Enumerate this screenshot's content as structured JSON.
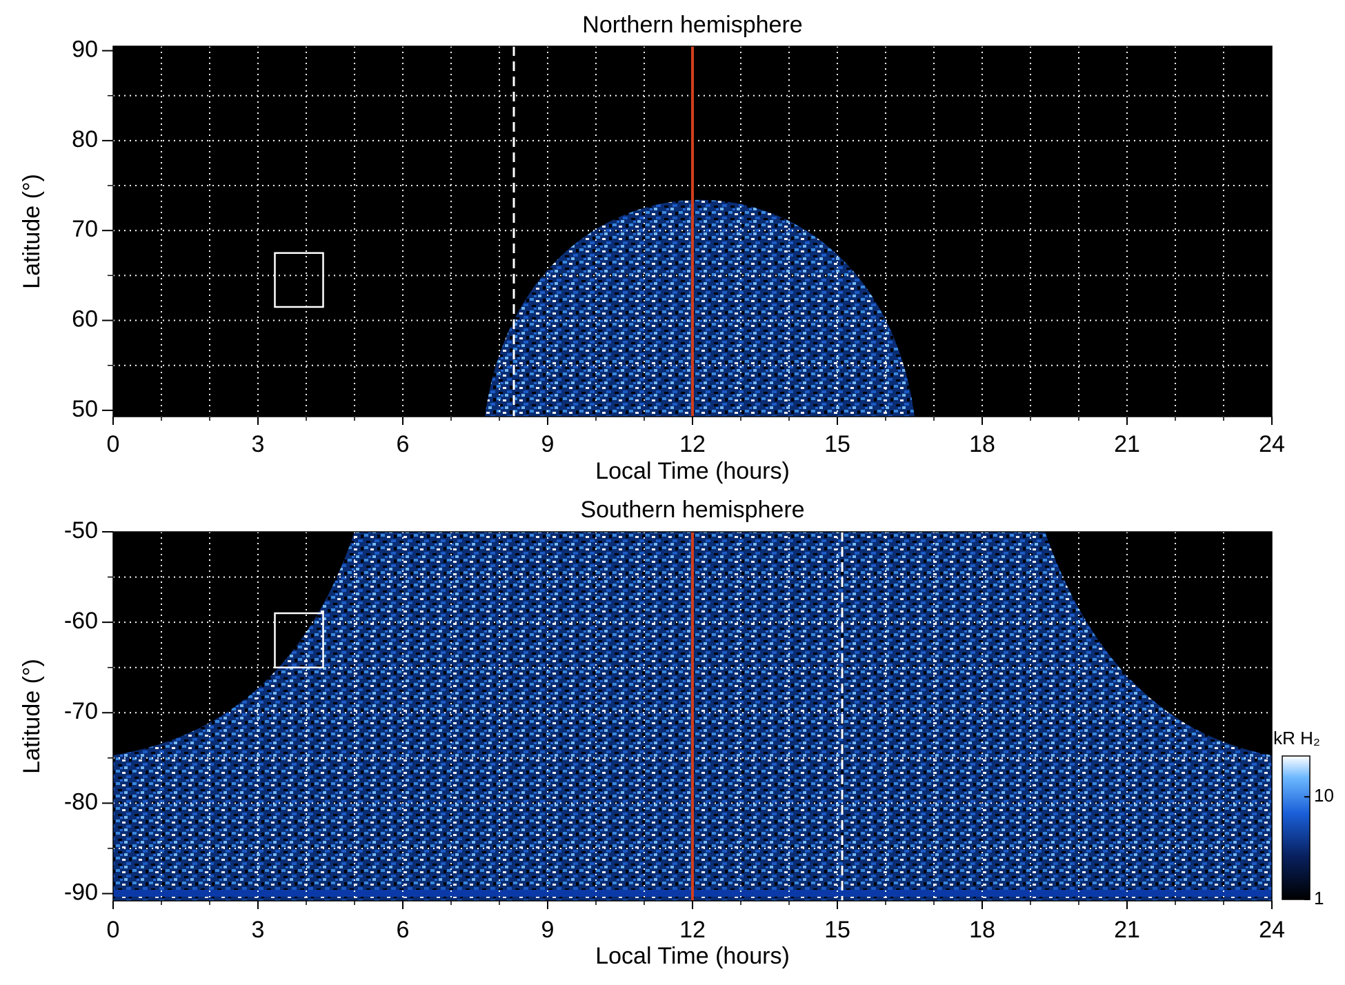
{
  "chart_data": [
    {
      "type": "heatmap",
      "title": "Northern hemisphere",
      "xlabel": "Local Time (hours)",
      "ylabel": "Latitude (°)",
      "xlim": [
        0,
        24
      ],
      "xticks": [
        0,
        3,
        6,
        9,
        12,
        15,
        18,
        21,
        24
      ],
      "xgridticks": [
        1,
        2,
        3,
        4,
        5,
        6,
        7,
        8,
        9,
        10,
        11,
        12,
        13,
        14,
        15,
        16,
        17,
        18,
        19,
        20,
        21,
        22,
        23
      ],
      "ylim": [
        49.3,
        90.5
      ],
      "yticks": [
        50,
        60,
        70,
        80,
        90
      ],
      "ygridticks": [
        55,
        60,
        65,
        70,
        75,
        80,
        85
      ],
      "vlines": [
        {
          "x": 12,
          "color": "#d23f1c",
          "style": "solid"
        },
        {
          "x": 8.3,
          "color": "#ffffff",
          "style": "dashed"
        }
      ],
      "boxes": [
        {
          "x": [
            3.35,
            4.35
          ],
          "y": [
            61.5,
            67.5
          ]
        }
      ]
    },
    {
      "type": "heatmap",
      "title": "Southern hemisphere",
      "xlabel": "Local Time (hours)",
      "ylabel": "Latitude (°)",
      "xlim": [
        0,
        24
      ],
      "xticks": [
        0,
        3,
        6,
        9,
        12,
        15,
        18,
        21,
        24
      ],
      "xgridticks": [
        1,
        2,
        3,
        4,
        5,
        6,
        7,
        8,
        9,
        10,
        11,
        12,
        13,
        14,
        15,
        16,
        17,
        18,
        19,
        20,
        21,
        22,
        23
      ],
      "ylim": [
        -90.8,
        -50
      ],
      "yticks": [
        -90,
        -80,
        -70,
        -60,
        -50
      ],
      "ygridticks": [
        -85,
        -80,
        -75,
        -70,
        -65,
        -60,
        -55
      ],
      "vlines": [
        {
          "x": 12,
          "color": "#d23f1c",
          "style": "solid"
        },
        {
          "x": 15.1,
          "color": "#ffffff",
          "style": "dashed"
        }
      ],
      "boxes": [
        {
          "x": [
            3.35,
            4.35
          ],
          "y": [
            -65,
            -59
          ]
        }
      ],
      "colorbar": {
        "label": "kR H₂",
        "lim": [
          1,
          25
        ],
        "ticks": [
          1,
          10
        ],
        "log": true
      }
    }
  ]
}
